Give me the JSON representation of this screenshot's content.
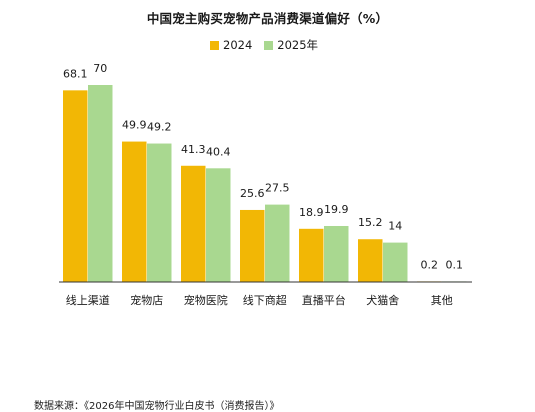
{
  "chart_data": {
    "type": "bar",
    "title": "中国宠主购买宠物产品消费渠道偏好（%）",
    "categories": [
      "线上渠道",
      "宠物店",
      "宠物医院",
      "线下商超",
      "直播平台",
      "犬猫舍",
      "其他"
    ],
    "series": [
      {
        "name": "2024",
        "color": "#F2B705",
        "values": [
          68.1,
          49.9,
          41.3,
          25.6,
          18.9,
          15.2,
          0.2
        ],
        "labels": [
          "68.1",
          "49.9",
          "41.3",
          "25.6",
          "18.9",
          "15.2",
          "0.2"
        ]
      },
      {
        "name": "2025年",
        "color": "#A9D890",
        "values": [
          70,
          49.2,
          40.4,
          27.5,
          19.9,
          14,
          0.1
        ],
        "labels": [
          "70",
          "49.2",
          "40.4",
          "27.5",
          "19.9",
          "14",
          "0.1"
        ]
      }
    ],
    "ylim": [
      0,
      70
    ],
    "grid": false,
    "legend_position": "top-center"
  },
  "source": "数据来源：《2026年中国宠物行业白皮书（消费报告）》"
}
